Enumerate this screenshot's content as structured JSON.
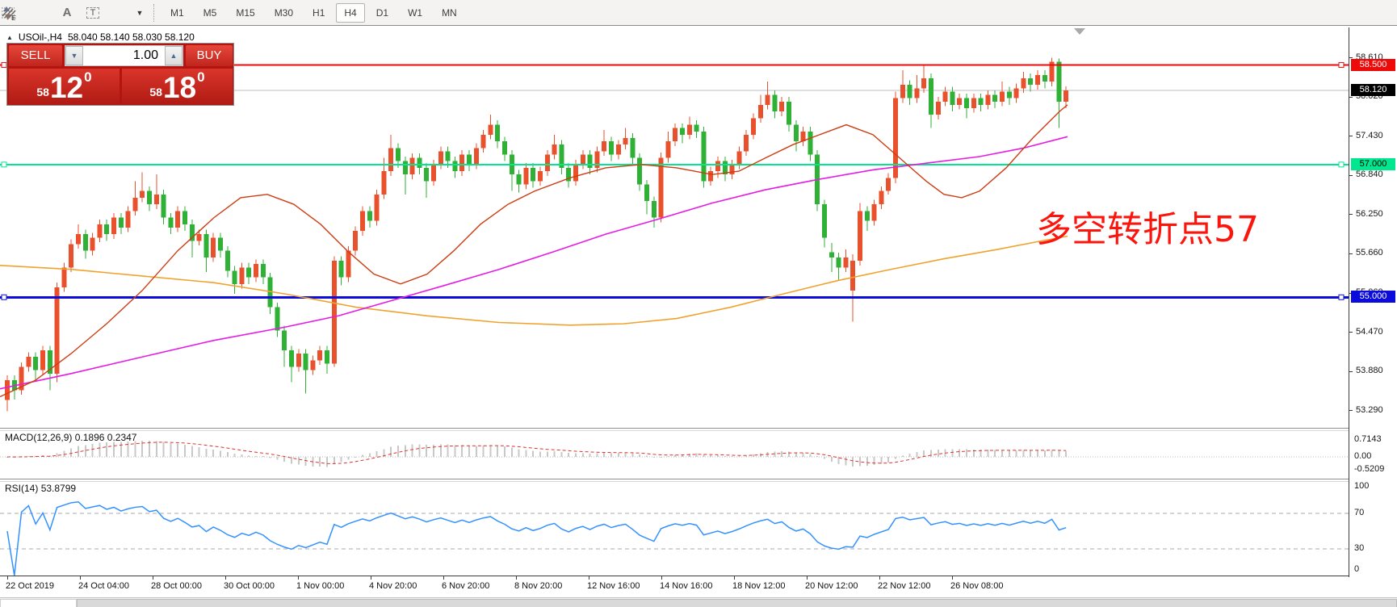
{
  "toolbar": {
    "icons": [
      {
        "name": "expert-advisor-icon",
        "glyph": "E"
      },
      {
        "name": "fibonacci-grid-icon",
        "glyph": "F"
      },
      {
        "name": "text-label-icon",
        "glyph": "A"
      },
      {
        "name": "text-box-icon",
        "glyph": "T"
      },
      {
        "name": "arrows-objects-icon",
        "glyph": ""
      },
      {
        "name": "objects-dropdown-caret-icon",
        "glyph": "▾"
      }
    ],
    "timeframes": [
      {
        "label": "M1",
        "active": false
      },
      {
        "label": "M5",
        "active": false
      },
      {
        "label": "M15",
        "active": false
      },
      {
        "label": "M30",
        "active": false
      },
      {
        "label": "H1",
        "active": false
      },
      {
        "label": "H4",
        "active": true
      },
      {
        "label": "D1",
        "active": false
      },
      {
        "label": "W1",
        "active": false
      },
      {
        "label": "MN",
        "active": false
      }
    ]
  },
  "chart_header": {
    "collapse_icon": "▲",
    "symbol_title": "USOil-,H4",
    "ohlc_text": "58.040 58.140 58.030 58.120"
  },
  "trade_panel": {
    "sell_label": "SELL",
    "buy_label": "BUY",
    "volume_value": "1.00",
    "spinner_down": "▼",
    "spinner_up": "▲",
    "sell_price": {
      "small": "58",
      "big": "12",
      "sup": "0"
    },
    "buy_price": {
      "small": "58",
      "big": "18",
      "sup": "0"
    }
  },
  "annotation": {
    "text": "多空转折点57",
    "color": "#fb150d"
  },
  "macd_panel": {
    "name": "MACD(12,26,9)",
    "value_main": "0.1896",
    "value_signal": "0.2347",
    "axis_values": [
      0.7143,
      0.0,
      -0.5209
    ],
    "axis_texts": [
      "0.7143",
      "0.00",
      "-0.5209"
    ]
  },
  "rsi_panel": {
    "name": "RSI(14)",
    "value": "53.8799",
    "axis_values": [
      100,
      70,
      30
    ],
    "axis_texts": [
      "100",
      "70",
      "30"
    ],
    "zero_text": "0",
    "levels_dashed": [
      70,
      30
    ]
  },
  "date_axis": [
    "22 Oct 2019",
    "24 Oct 04:00",
    "28 Oct 00:00",
    "30 Oct 00:00",
    "1 Nov 00:00",
    "4 Nov 20:00",
    "6 Nov 20:00",
    "8 Nov 20:00",
    "12 Nov 16:00",
    "14 Nov 16:00",
    "18 Nov 12:00",
    "20 Nov 12:00",
    "22 Nov 12:00",
    "26 Nov 08:00"
  ],
  "price_axis": {
    "tick_labels": [
      58.61,
      58.02,
      57.43,
      56.84,
      56.25,
      55.66,
      55.06,
      54.47,
      53.88,
      53.29
    ],
    "badges": [
      {
        "name": "resistance-price-badge",
        "text": "58.500",
        "price": 58.5,
        "bg": "#ef0a0a",
        "fg": "#ffffff"
      },
      {
        "name": "current-price-badge",
        "text": "58.120",
        "price": 58.12,
        "bg": "#000000",
        "fg": "#ffffff"
      },
      {
        "name": "green-level-badge",
        "text": "57.000",
        "price": 57.0,
        "bg": "#00e78f",
        "fg": "#000000"
      },
      {
        "name": "blue-level-badge",
        "text": "55.000",
        "price": 55.0,
        "bg": "#0b0bdb",
        "fg": "#ffffff"
      }
    ]
  },
  "chart_data": {
    "type": "candlestick",
    "symbol": "USOil-",
    "timeframe": "H4",
    "title": "USOil-,H4",
    "ohlc_current": {
      "open": 58.04,
      "high": 58.14,
      "low": 58.03,
      "close": 58.12
    },
    "bid": 58.12,
    "ask": 58.18,
    "ylim": [
      53.29,
      58.61
    ],
    "grid": false,
    "colors": {
      "bull": "#e8512b",
      "bear": "#2eb135",
      "ma_orange": "#efa32e",
      "ma_magenta": "#e41ce4",
      "ma_vermillion": "#cc3d12",
      "level_red": "#ef0a0a",
      "level_green": "#00e78f",
      "level_blue": "#0b0bdb",
      "current_line": "#bcbcbc",
      "macd_hist": "#c8c8c8",
      "macd_signal": "#e03131",
      "rsi_line": "#3392ff"
    },
    "levels": [
      {
        "name": "resistance-line",
        "price": 58.5,
        "color": "#ef0a0a",
        "width": 2
      },
      {
        "name": "green-support-line",
        "price": 57.0,
        "color": "#00e78f",
        "width": 2
      },
      {
        "name": "blue-support-line",
        "price": 55.0,
        "color": "#0b0bdb",
        "width": 3
      }
    ],
    "current_price_line": 58.12,
    "candles": [
      [
        53.45,
        53.82,
        53.28,
        53.75
      ],
      [
        53.75,
        53.82,
        53.46,
        53.6
      ],
      [
        53.6,
        54.02,
        53.53,
        53.95
      ],
      [
        53.95,
        54.17,
        53.88,
        54.1
      ],
      [
        54.1,
        54.17,
        53.75,
        53.9
      ],
      [
        53.9,
        54.27,
        53.83,
        54.2
      ],
      [
        54.2,
        54.27,
        53.6,
        53.85
      ],
      [
        53.85,
        55.22,
        53.72,
        55.15
      ],
      [
        55.15,
        55.52,
        55.08,
        55.45
      ],
      [
        55.45,
        55.87,
        55.38,
        55.8
      ],
      [
        55.8,
        56.1,
        55.73,
        55.95
      ],
      [
        55.95,
        56.02,
        55.58,
        55.7
      ],
      [
        55.7,
        55.97,
        55.63,
        55.9
      ],
      [
        55.9,
        56.17,
        55.83,
        56.1
      ],
      [
        56.1,
        56.17,
        55.85,
        55.95
      ],
      [
        55.95,
        56.27,
        55.88,
        56.2
      ],
      [
        56.2,
        56.27,
        55.95,
        56.05
      ],
      [
        56.05,
        56.37,
        55.98,
        56.3
      ],
      [
        56.3,
        56.75,
        56.23,
        56.5
      ],
      [
        56.5,
        56.88,
        56.43,
        56.6
      ],
      [
        56.6,
        56.67,
        56.3,
        56.4
      ],
      [
        56.4,
        56.85,
        56.33,
        56.55
      ],
      [
        56.55,
        56.62,
        56.1,
        56.2
      ],
      [
        56.2,
        56.27,
        55.95,
        56.05
      ],
      [
        56.05,
        56.37,
        55.98,
        56.3
      ],
      [
        56.3,
        56.37,
        56.0,
        56.1
      ],
      [
        56.1,
        56.17,
        55.6,
        55.85
      ],
      [
        55.85,
        56.02,
        55.78,
        55.95
      ],
      [
        55.95,
        56.02,
        55.38,
        55.6
      ],
      [
        55.6,
        55.97,
        55.53,
        55.9
      ],
      [
        55.9,
        55.97,
        55.6,
        55.7
      ],
      [
        55.7,
        55.77,
        55.3,
        55.4
      ],
      [
        55.4,
        55.47,
        55.05,
        55.2
      ],
      [
        55.2,
        55.52,
        55.13,
        55.45
      ],
      [
        55.45,
        55.52,
        55.2,
        55.3
      ],
      [
        55.3,
        55.57,
        55.23,
        55.5
      ],
      [
        55.5,
        55.57,
        55.2,
        55.3
      ],
      [
        55.3,
        55.37,
        54.75,
        54.85
      ],
      [
        54.85,
        54.92,
        54.4,
        54.5
      ],
      [
        54.5,
        54.57,
        53.95,
        54.2
      ],
      [
        54.2,
        54.27,
        53.72,
        53.95
      ],
      [
        53.95,
        54.22,
        53.88,
        54.15
      ],
      [
        54.15,
        54.22,
        53.55,
        53.9
      ],
      [
        53.9,
        54.12,
        53.83,
        54.05
      ],
      [
        54.05,
        54.27,
        53.98,
        54.2
      ],
      [
        54.2,
        54.27,
        53.85,
        54.0
      ],
      [
        54.0,
        55.62,
        53.95,
        55.55
      ],
      [
        55.55,
        55.62,
        55.18,
        55.3
      ],
      [
        55.3,
        55.77,
        55.23,
        55.7
      ],
      [
        55.7,
        56.07,
        55.63,
        56.0
      ],
      [
        56.0,
        56.37,
        55.93,
        56.3
      ],
      [
        56.3,
        56.37,
        56.05,
        56.15
      ],
      [
        56.15,
        56.62,
        56.08,
        56.55
      ],
      [
        56.55,
        57.1,
        56.48,
        56.9
      ],
      [
        56.9,
        57.45,
        56.83,
        57.25
      ],
      [
        57.25,
        57.32,
        56.95,
        57.05
      ],
      [
        57.05,
        57.12,
        56.55,
        56.85
      ],
      [
        56.85,
        57.17,
        56.78,
        57.1
      ],
      [
        57.1,
        57.17,
        56.85,
        56.95
      ],
      [
        56.95,
        57.02,
        56.5,
        56.75
      ],
      [
        56.75,
        57.07,
        56.68,
        57.0
      ],
      [
        57.0,
        57.27,
        56.93,
        57.2
      ],
      [
        57.2,
        57.27,
        56.95,
        57.05
      ],
      [
        57.05,
        57.12,
        56.8,
        56.9
      ],
      [
        56.9,
        57.22,
        56.83,
        57.15
      ],
      [
        57.15,
        57.22,
        56.9,
        57.0
      ],
      [
        57.0,
        57.32,
        56.93,
        57.25
      ],
      [
        57.25,
        57.52,
        57.18,
        57.45
      ],
      [
        57.45,
        57.75,
        57.38,
        57.6
      ],
      [
        57.6,
        57.67,
        57.25,
        57.35
      ],
      [
        57.35,
        57.42,
        57.05,
        57.15
      ],
      [
        57.15,
        57.22,
        56.6,
        56.85
      ],
      [
        56.85,
        56.92,
        56.58,
        56.7
      ],
      [
        56.7,
        57.02,
        56.63,
        56.95
      ],
      [
        56.95,
        57.02,
        56.65,
        56.75
      ],
      [
        56.75,
        56.97,
        56.68,
        56.9
      ],
      [
        56.9,
        57.22,
        56.83,
        57.15
      ],
      [
        57.15,
        57.45,
        57.08,
        57.3
      ],
      [
        57.3,
        57.37,
        56.85,
        56.95
      ],
      [
        56.95,
        57.02,
        56.65,
        56.75
      ],
      [
        56.75,
        57.07,
        56.68,
        57.0
      ],
      [
        57.0,
        57.22,
        56.93,
        57.15
      ],
      [
        57.15,
        57.22,
        56.85,
        56.95
      ],
      [
        56.95,
        57.27,
        56.88,
        57.2
      ],
      [
        57.2,
        57.52,
        57.13,
        57.35
      ],
      [
        57.35,
        57.42,
        57.05,
        57.15
      ],
      [
        57.15,
        57.37,
        57.08,
        57.3
      ],
      [
        57.3,
        57.55,
        57.23,
        57.4
      ],
      [
        57.4,
        57.47,
        57.0,
        57.1
      ],
      [
        57.1,
        57.17,
        56.6,
        56.7
      ],
      [
        56.7,
        56.77,
        56.25,
        56.45
      ],
      [
        56.45,
        56.52,
        56.05,
        56.2
      ],
      [
        56.2,
        57.18,
        56.13,
        57.1
      ],
      [
        57.1,
        57.5,
        57.03,
        57.35
      ],
      [
        57.35,
        57.62,
        57.28,
        57.55
      ],
      [
        57.55,
        57.62,
        57.32,
        57.45
      ],
      [
        57.45,
        57.72,
        57.38,
        57.6
      ],
      [
        57.6,
        57.67,
        57.4,
        57.5
      ],
      [
        57.5,
        57.57,
        56.65,
        56.75
      ],
      [
        56.75,
        56.97,
        56.68,
        56.9
      ],
      [
        56.9,
        57.12,
        56.8,
        57.05
      ],
      [
        57.05,
        57.12,
        56.75,
        56.85
      ],
      [
        56.85,
        57.07,
        56.78,
        57.0
      ],
      [
        57.0,
        57.27,
        56.93,
        57.2
      ],
      [
        57.2,
        57.52,
        57.13,
        57.45
      ],
      [
        57.45,
        57.77,
        57.38,
        57.7
      ],
      [
        57.7,
        58.05,
        57.63,
        57.9
      ],
      [
        57.9,
        58.25,
        57.83,
        58.05
      ],
      [
        58.05,
        58.12,
        57.7,
        57.8
      ],
      [
        57.8,
        58.02,
        57.73,
        57.95
      ],
      [
        57.95,
        58.02,
        57.5,
        57.6
      ],
      [
        57.6,
        57.67,
        57.2,
        57.35
      ],
      [
        57.35,
        57.57,
        57.28,
        57.5
      ],
      [
        57.5,
        57.57,
        57.05,
        57.15
      ],
      [
        57.15,
        57.22,
        56.3,
        56.4
      ],
      [
        56.4,
        56.47,
        55.75,
        55.9
      ],
      [
        55.68,
        55.82,
        55.38,
        55.6
      ],
      [
        55.6,
        55.67,
        55.25,
        55.45
      ],
      [
        55.45,
        55.72,
        55.38,
        55.6
      ],
      [
        55.1,
        55.65,
        54.63,
        55.55
      ],
      [
        55.55,
        56.42,
        55.48,
        56.3
      ],
      [
        56.3,
        56.37,
        56.0,
        56.15
      ],
      [
        56.15,
        56.47,
        56.08,
        56.4
      ],
      [
        56.4,
        56.67,
        56.33,
        56.6
      ],
      [
        56.6,
        56.87,
        56.55,
        56.8
      ],
      [
        56.8,
        58.1,
        56.72,
        58.0
      ],
      [
        58.0,
        58.42,
        57.93,
        58.2
      ],
      [
        58.2,
        58.27,
        57.9,
        58.0
      ],
      [
        58.0,
        58.35,
        57.93,
        58.15
      ],
      [
        58.15,
        58.5,
        58.08,
        58.3
      ],
      [
        58.3,
        58.37,
        57.55,
        57.75
      ],
      [
        57.75,
        58.02,
        57.68,
        57.95
      ],
      [
        57.95,
        58.17,
        57.88,
        58.1
      ],
      [
        58.1,
        58.17,
        57.8,
        57.9
      ],
      [
        57.9,
        58.07,
        57.83,
        58.0
      ],
      [
        58.0,
        58.07,
        57.7,
        57.85
      ],
      [
        57.85,
        58.07,
        57.78,
        58.0
      ],
      [
        58.0,
        58.07,
        57.8,
        57.9
      ],
      [
        57.9,
        58.12,
        57.83,
        58.05
      ],
      [
        58.05,
        58.12,
        57.85,
        57.95
      ],
      [
        57.95,
        58.25,
        57.88,
        58.1
      ],
      [
        58.1,
        58.17,
        57.9,
        58.0
      ],
      [
        58.0,
        58.22,
        57.93,
        58.15
      ],
      [
        58.15,
        58.4,
        58.08,
        58.3
      ],
      [
        58.3,
        58.37,
        58.1,
        58.2
      ],
      [
        58.2,
        58.42,
        58.13,
        58.35
      ],
      [
        58.35,
        58.42,
        58.15,
        58.25
      ],
      [
        58.25,
        58.61,
        58.18,
        58.55
      ],
      [
        58.55,
        58.6,
        57.55,
        57.95
      ],
      [
        57.95,
        58.18,
        57.85,
        58.12
      ]
    ],
    "moving_averages": {
      "orange": [
        [
          0,
          55.48
        ],
        [
          88,
          55.42
        ],
        [
          176,
          55.32
        ],
        [
          265,
          55.22
        ],
        [
          353,
          55.05
        ],
        [
          441,
          54.85
        ],
        [
          529,
          54.72
        ],
        [
          618,
          54.62
        ],
        [
          706,
          54.58
        ],
        [
          772,
          54.6
        ],
        [
          838,
          54.68
        ],
        [
          905,
          54.85
        ],
        [
          970,
          55.05
        ],
        [
          1037,
          55.25
        ],
        [
          1103,
          55.42
        ],
        [
          1169,
          55.58
        ],
        [
          1235,
          55.72
        ],
        [
          1290,
          55.85
        ],
        [
          1322,
          55.92
        ]
      ],
      "magenta": [
        [
          0,
          53.62
        ],
        [
          88,
          53.85
        ],
        [
          176,
          54.1
        ],
        [
          265,
          54.35
        ],
        [
          353,
          54.55
        ],
        [
          419,
          54.72
        ],
        [
          485,
          54.95
        ],
        [
          551,
          55.18
        ],
        [
          618,
          55.42
        ],
        [
          684,
          55.68
        ],
        [
          750,
          55.95
        ],
        [
          816,
          56.18
        ],
        [
          882,
          56.42
        ],
        [
          948,
          56.62
        ],
        [
          1015,
          56.78
        ],
        [
          1081,
          56.92
        ],
        [
          1147,
          57.02
        ],
        [
          1213,
          57.12
        ],
        [
          1268,
          57.25
        ],
        [
          1322,
          57.42
        ]
      ],
      "vermillion": [
        [
          0,
          53.5
        ],
        [
          44,
          53.75
        ],
        [
          88,
          54.15
        ],
        [
          132,
          54.6
        ],
        [
          176,
          55.1
        ],
        [
          220,
          55.7
        ],
        [
          265,
          56.2
        ],
        [
          298,
          56.5
        ],
        [
          331,
          56.55
        ],
        [
          364,
          56.4
        ],
        [
          397,
          56.1
        ],
        [
          430,
          55.7
        ],
        [
          463,
          55.35
        ],
        [
          496,
          55.2
        ],
        [
          529,
          55.35
        ],
        [
          562,
          55.7
        ],
        [
          595,
          56.1
        ],
        [
          629,
          56.4
        ],
        [
          662,
          56.6
        ],
        [
          706,
          56.8
        ],
        [
          750,
          56.95
        ],
        [
          794,
          57.0
        ],
        [
          838,
          56.95
        ],
        [
          882,
          56.85
        ],
        [
          915,
          56.9
        ],
        [
          948,
          57.1
        ],
        [
          982,
          57.3
        ],
        [
          1015,
          57.45
        ],
        [
          1048,
          57.6
        ],
        [
          1081,
          57.45
        ],
        [
          1114,
          57.1
        ],
        [
          1147,
          56.75
        ],
        [
          1169,
          56.55
        ],
        [
          1191,
          56.5
        ],
        [
          1213,
          56.6
        ],
        [
          1246,
          56.95
        ],
        [
          1279,
          57.4
        ],
        [
          1312,
          57.8
        ],
        [
          1322,
          57.9
        ]
      ]
    }
  }
}
